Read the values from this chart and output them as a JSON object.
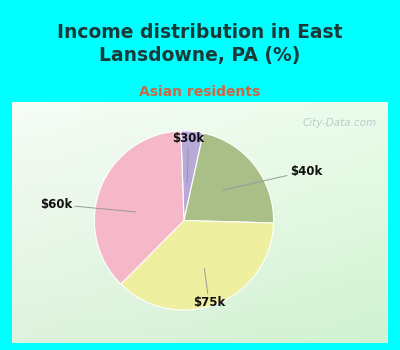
{
  "title": "Income distribution in East\nLansdowne, PA (%)",
  "subtitle": "Asian residents",
  "title_color": "#1a3a3a",
  "subtitle_color": "#cc6644",
  "bg_cyan": "#00ffff",
  "labels": [
    "$30k",
    "$40k",
    "$75k",
    "$60k"
  ],
  "values": [
    4,
    22,
    37,
    37
  ],
  "colors": [
    "#b8aad8",
    "#aabf88",
    "#eef0a0",
    "#f5b8c8"
  ],
  "watermark": "City-Data.com",
  "figsize": [
    4.0,
    3.5
  ],
  "dpi": 100
}
